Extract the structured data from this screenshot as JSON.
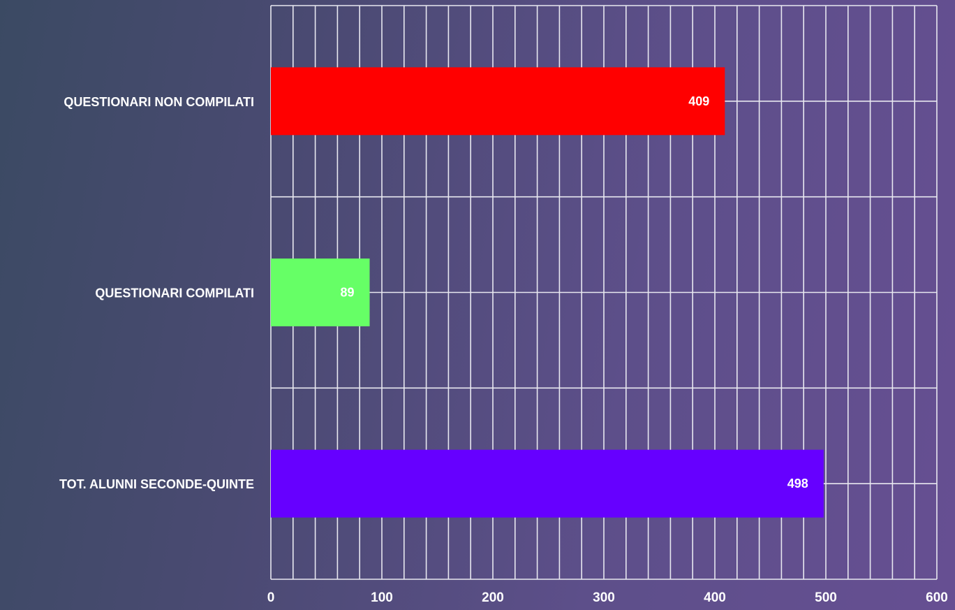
{
  "chart_data": {
    "type": "bar",
    "orientation": "horizontal",
    "title": "",
    "xlabel": "",
    "ylabel": "",
    "categories": [
      "QUESTIONARI NON COMPILATI",
      "QUESTIONARI COMPILATI",
      "TOT. ALUNNI SECONDE-QUINTE"
    ],
    "values": [
      409,
      89,
      498
    ],
    "colors": [
      "#ff0000",
      "#66ff66",
      "#6600ff"
    ],
    "data_labels": [
      "409",
      "89",
      "498"
    ],
    "xlim": [
      0,
      600
    ],
    "x_ticks": [
      0,
      100,
      200,
      300,
      400,
      500,
      600
    ],
    "x_tick_labels": [
      "0",
      "100",
      "200",
      "300",
      "400",
      "500",
      "600"
    ],
    "minor_grid_step": 20,
    "grid": true,
    "legend": "none"
  }
}
